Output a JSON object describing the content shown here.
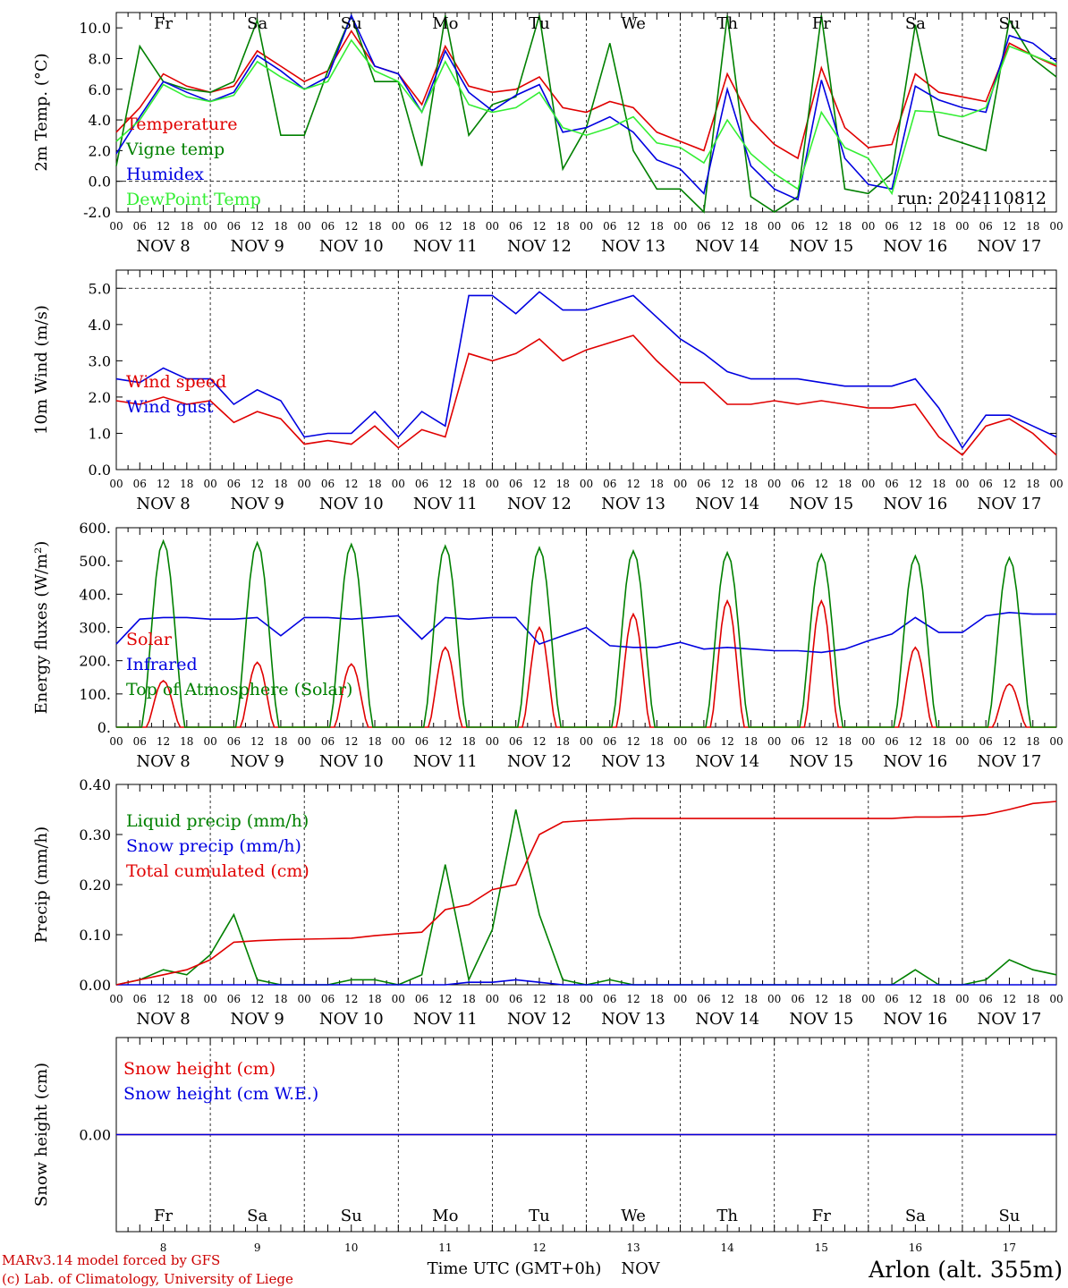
{
  "time_axis": {
    "hours": [
      "00",
      "06",
      "12",
      "18"
    ],
    "end_hour": "00",
    "dates": [
      "NOV 8",
      "NOV 9",
      "NOV 10",
      "NOV 11",
      "NOV 12",
      "NOV 13",
      "NOV 14",
      "NOV 15",
      "NOV 16",
      "NOV 17"
    ],
    "weekdays": [
      "Fr",
      "Sa",
      "Su",
      "Mo",
      "Tu",
      "We",
      "Th",
      "Fr",
      "Sa",
      "Su"
    ],
    "weekend_color": "#e00000",
    "weekday_color": "#000000",
    "day_numbers": [
      "8",
      "9",
      "10",
      "11",
      "12",
      "13",
      "14",
      "15",
      "16",
      "17"
    ],
    "xlabel": "Time UTC (GMT+0h)",
    "month": "NOV"
  },
  "footer": {
    "model": "MARv3.14 model forced by GFS",
    "lab": "(c) Lab. of Climatology, University of Liege",
    "station": "Arlon (alt. 355m)"
  },
  "chart_data": [
    {
      "type": "line",
      "ylabel": "2m Temp. (°C)",
      "ylim": [
        -2,
        11
      ],
      "yticks": [
        "-2.0",
        "0.0",
        "2.0",
        "4.0",
        "6.0",
        "8.0",
        "10.0"
      ],
      "run_label": "run: 2024110812",
      "x_days": [
        0,
        0.25,
        0.5,
        0.75,
        1,
        1.25,
        1.5,
        1.75,
        2,
        2.25,
        2.5,
        2.75,
        3,
        3.25,
        3.5,
        3.75,
        4,
        4.25,
        4.5,
        4.75,
        5,
        5.25,
        5.5,
        5.75,
        6,
        6.25,
        6.5,
        6.75,
        7,
        7.25,
        7.5,
        7.75,
        8,
        8.25,
        8.5,
        8.75,
        9,
        9.25,
        9.5,
        9.75,
        10
      ],
      "series": [
        {
          "name": "Temperature",
          "color": "#e00000",
          "values": [
            3.2,
            4.8,
            7.0,
            6.2,
            5.8,
            6.2,
            8.5,
            7.5,
            6.5,
            7.2,
            9.8,
            7.5,
            7.0,
            5.0,
            8.8,
            6.2,
            5.8,
            6.0,
            6.8,
            4.8,
            4.5,
            5.2,
            4.8,
            3.2,
            2.6,
            2.0,
            7.0,
            4.0,
            2.4,
            1.5,
            7.4,
            3.5,
            2.2,
            2.4,
            7.0,
            5.8,
            5.5,
            5.2,
            9.0,
            8.2,
            7.5
          ]
        },
        {
          "name": "Vigne temp",
          "color": "#008000",
          "values": [
            1.0,
            8.8,
            6.5,
            6.0,
            5.8,
            6.5,
            10.5,
            3.0,
            3.0,
            7.2,
            10.8,
            6.5,
            6.5,
            1.0,
            10.8,
            3.0,
            5.0,
            5.5,
            10.8,
            0.8,
            3.5,
            9.0,
            2.0,
            -0.5,
            -0.5,
            -2.0,
            10.8,
            -1.0,
            -2.2,
            -1.0,
            10.8,
            -0.5,
            -0.8,
            0.5,
            10.2,
            3.0,
            2.5,
            2.0,
            10.5,
            8.0,
            6.8
          ]
        },
        {
          "name": "Humidex",
          "color": "#0000e0",
          "values": [
            1.8,
            4.2,
            6.5,
            5.8,
            5.2,
            5.8,
            8.2,
            7.2,
            6.0,
            6.8,
            10.8,
            7.5,
            7.0,
            4.5,
            8.5,
            5.8,
            4.6,
            5.6,
            6.3,
            3.2,
            3.5,
            4.2,
            3.2,
            1.4,
            0.8,
            -0.8,
            6.0,
            1.0,
            -0.5,
            -1.2,
            6.6,
            1.5,
            -0.2,
            -0.5,
            6.2,
            5.3,
            4.8,
            4.5,
            9.5,
            9.0,
            7.8
          ]
        },
        {
          "name": "DewPoint Temp",
          "color": "#33ee33",
          "values": [
            2.6,
            4.0,
            6.3,
            5.5,
            5.2,
            5.6,
            7.8,
            6.8,
            6.0,
            6.5,
            9.2,
            7.2,
            6.5,
            4.5,
            7.8,
            5.0,
            4.5,
            4.8,
            5.8,
            3.5,
            3.0,
            3.5,
            4.2,
            2.5,
            2.2,
            1.2,
            4.0,
            1.8,
            0.5,
            -0.5,
            4.5,
            2.2,
            1.5,
            -0.8,
            4.6,
            4.5,
            4.2,
            4.8,
            8.8,
            8.2,
            7.6
          ]
        }
      ]
    },
    {
      "type": "line",
      "ylabel": "10m Wind (m/s)",
      "ylim": [
        0,
        5.5
      ],
      "yticks": [
        "0.0",
        "1.0",
        "2.0",
        "3.0",
        "4.0",
        "5.0"
      ],
      "x_days": [
        0,
        0.25,
        0.5,
        0.75,
        1,
        1.25,
        1.5,
        1.75,
        2,
        2.25,
        2.5,
        2.75,
        3,
        3.25,
        3.5,
        3.75,
        4,
        4.25,
        4.5,
        4.75,
        5,
        5.25,
        5.5,
        5.75,
        6,
        6.25,
        6.5,
        6.75,
        7,
        7.25,
        7.5,
        7.75,
        8,
        8.25,
        8.5,
        8.75,
        9,
        9.25,
        9.5,
        9.75,
        10
      ],
      "series": [
        {
          "name": "Wind speed",
          "color": "#e00000",
          "values": [
            1.9,
            1.8,
            2.0,
            1.8,
            1.9,
            1.3,
            1.6,
            1.4,
            0.7,
            0.8,
            0.7,
            1.2,
            0.6,
            1.1,
            0.9,
            3.2,
            3.0,
            3.2,
            3.6,
            3.0,
            3.3,
            3.5,
            3.7,
            3.0,
            2.4,
            2.4,
            1.8,
            1.8,
            1.9,
            1.8,
            1.9,
            1.8,
            1.7,
            1.7,
            1.8,
            0.9,
            0.4,
            1.2,
            1.4,
            1.0,
            0.4
          ]
        },
        {
          "name": "Wind gust",
          "color": "#0000e0",
          "values": [
            2.5,
            2.4,
            2.8,
            2.5,
            2.5,
            1.8,
            2.2,
            1.9,
            0.9,
            1.0,
            1.0,
            1.6,
            0.9,
            1.6,
            1.2,
            4.8,
            4.8,
            4.3,
            4.9,
            4.4,
            4.4,
            4.6,
            4.8,
            4.2,
            3.6,
            3.2,
            2.7,
            2.5,
            2.5,
            2.5,
            2.4,
            2.3,
            2.3,
            2.3,
            2.5,
            1.7,
            0.6,
            1.5,
            1.5,
            1.2,
            0.9
          ]
        }
      ]
    },
    {
      "type": "line",
      "ylabel": "Energy fluxes (W/m²)",
      "ylim": [
        0,
        600
      ],
      "yticks": [
        "0.",
        "100.",
        "200.",
        "300.",
        "400.",
        "500.",
        "600."
      ],
      "x_days": [
        0,
        0.25,
        0.5,
        0.75,
        1,
        1.25,
        1.5,
        1.75,
        2,
        2.25,
        2.5,
        2.75,
        3,
        3.25,
        3.5,
        3.75,
        4,
        4.25,
        4.5,
        4.75,
        5,
        5.25,
        5.5,
        5.75,
        6,
        6.25,
        6.5,
        6.75,
        7,
        7.25,
        7.5,
        7.75,
        8,
        8.25,
        8.5,
        8.75,
        9,
        9.25,
        9.5,
        9.75,
        10
      ],
      "series": [
        {
          "name": "Solar",
          "color": "#e00000",
          "daily_peaks": [
            140,
            195,
            190,
            240,
            300,
            340,
            380,
            380,
            240,
            130
          ]
        },
        {
          "name": "Infrared",
          "color": "#0000e0",
          "values": [
            250,
            325,
            330,
            330,
            325,
            325,
            330,
            275,
            330,
            330,
            325,
            330,
            335,
            265,
            330,
            325,
            330,
            330,
            250,
            275,
            300,
            245,
            240,
            240,
            255,
            235,
            240,
            235,
            230,
            230,
            225,
            235,
            260,
            280,
            330,
            285,
            285,
            335,
            345,
            340,
            340
          ]
        },
        {
          "name": "Top of Atmosphere (Solar)",
          "color": "#008000",
          "daily_peaks": [
            560,
            555,
            550,
            545,
            540,
            530,
            525,
            520,
            515,
            510
          ]
        }
      ]
    },
    {
      "type": "line",
      "ylabel": "Precip (mm/h)",
      "ylim": [
        0,
        0.4
      ],
      "yticks": [
        "0.00",
        "0.10",
        "0.20",
        "0.30",
        "0.40"
      ],
      "x_days": [
        0,
        0.25,
        0.5,
        0.75,
        1,
        1.25,
        1.5,
        1.75,
        2,
        2.25,
        2.5,
        2.75,
        3,
        3.25,
        3.5,
        3.75,
        4,
        4.25,
        4.5,
        4.75,
        5,
        5.25,
        5.5,
        5.75,
        6,
        6.25,
        6.5,
        6.75,
        7,
        7.25,
        7.5,
        7.75,
        8,
        8.25,
        8.5,
        8.75,
        9,
        9.25,
        9.5,
        9.75,
        10
      ],
      "series": [
        {
          "name": "Liquid precip (mm/h)",
          "color": "#008000",
          "values": [
            0,
            0.01,
            0.03,
            0.02,
            0.06,
            0.14,
            0.01,
            0,
            0,
            0,
            0.01,
            0.01,
            0,
            0.02,
            0.24,
            0.01,
            0.11,
            0.35,
            0.14,
            0.01,
            0,
            0.01,
            0,
            0,
            0,
            0,
            0,
            0,
            0,
            0,
            0,
            0,
            0,
            0,
            0.03,
            0,
            0,
            0.01,
            0.05,
            0.03,
            0.02
          ]
        },
        {
          "name": "Snow precip (mm/h)",
          "color": "#0000e0",
          "values": [
            0,
            0,
            0,
            0,
            0,
            0,
            0,
            0,
            0,
            0,
            0,
            0,
            0,
            0,
            0,
            0.005,
            0.005,
            0.01,
            0.005,
            0,
            0,
            0,
            0,
            0,
            0,
            0,
            0,
            0,
            0,
            0,
            0,
            0,
            0,
            0,
            0,
            0,
            0,
            0,
            0,
            0,
            0
          ]
        },
        {
          "name": "Total cumulated (cm)",
          "color": "#e00000",
          "values": [
            0,
            0.01,
            0.02,
            0.03,
            0.05,
            0.085,
            0.088,
            0.09,
            0.091,
            0.092,
            0.093,
            0.098,
            0.102,
            0.105,
            0.15,
            0.16,
            0.19,
            0.2,
            0.3,
            0.325,
            0.328,
            0.33,
            0.332,
            0.332,
            0.332,
            0.332,
            0.332,
            0.332,
            0.332,
            0.332,
            0.332,
            0.332,
            0.332,
            0.332,
            0.335,
            0.335,
            0.336,
            0.34,
            0.35,
            0.362,
            0.366
          ]
        }
      ]
    },
    {
      "type": "line",
      "ylabel": "Snow height (cm)",
      "ylim": [
        -1,
        1
      ],
      "yticks": [
        "0.00"
      ],
      "x_days": [
        0,
        10
      ],
      "series": [
        {
          "name": "Snow height (cm)",
          "color": "#e00000",
          "values": [
            0,
            0
          ]
        },
        {
          "name": "Snow height (cm W.E.)",
          "color": "#0000e0",
          "values": [
            0,
            0
          ]
        }
      ]
    }
  ]
}
